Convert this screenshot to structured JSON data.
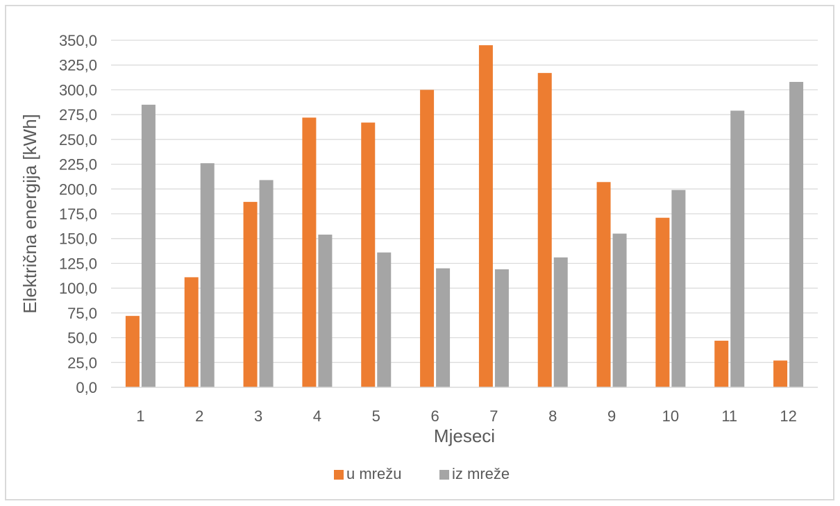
{
  "chart_data": {
    "type": "bar",
    "title": "",
    "xlabel": "Mjeseci",
    "ylabel": "Električna energija [kWh]",
    "categories": [
      "1",
      "2",
      "3",
      "4",
      "5",
      "6",
      "7",
      "8",
      "9",
      "10",
      "11",
      "12"
    ],
    "series": [
      {
        "name": "u mrežu",
        "color": "#ed7d31",
        "values": [
          72,
          111,
          187,
          272,
          267,
          300,
          345,
          317,
          207,
          171,
          47,
          27
        ]
      },
      {
        "name": "iz mreže",
        "color": "#a5a5a5",
        "values": [
          285,
          226,
          209,
          154,
          136,
          120,
          119,
          131,
          155,
          199,
          279,
          308
        ]
      }
    ],
    "ylim": [
      0,
      350
    ],
    "yticks": [
      "0,0",
      "25,0",
      "50,0",
      "75,0",
      "100,0",
      "125,0",
      "150,0",
      "175,0",
      "200,0",
      "225,0",
      "250,0",
      "275,0",
      "300,0",
      "325,0",
      "350,0"
    ],
    "grid": true,
    "legend_position": "bottom"
  }
}
